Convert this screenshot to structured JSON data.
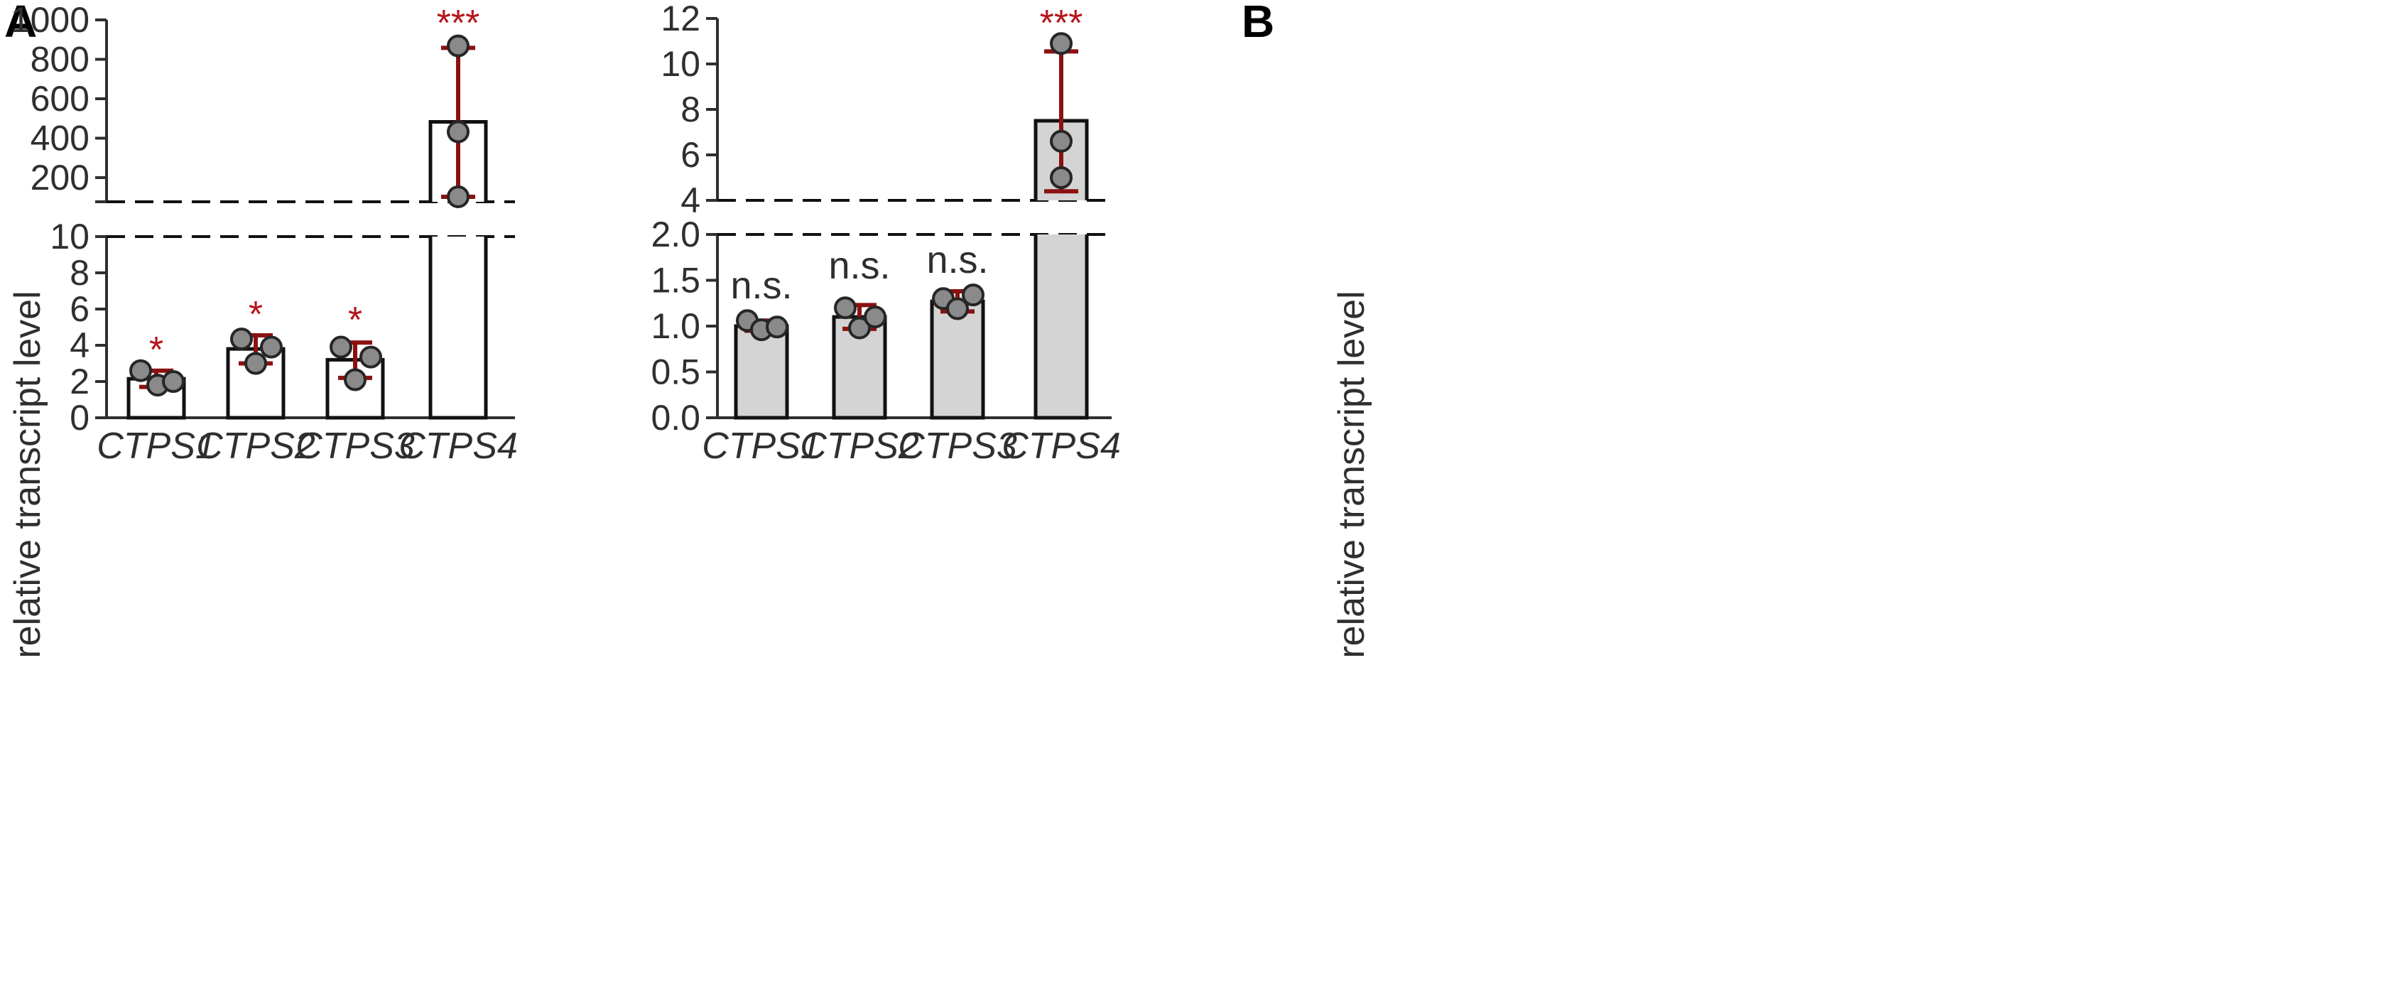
{
  "colors": {
    "axis": "#2f2f2f",
    "bar_edge": "#111111",
    "bar_fill_A": "#ffffff",
    "bar_fill_B": "#d4d4d4",
    "error": "#8b1111",
    "point_fill": "#8a8a8a",
    "point_edge": "#262626",
    "sig": "#b5161b"
  },
  "chart_data": [
    {
      "panel": "A",
      "type": "bar",
      "ylabel": "relative transcript level",
      "categories": [
        "CTPS1",
        "CTPS2",
        "CTPS3",
        "CTPS4"
      ],
      "values": [
        2.15,
        3.8,
        3.2,
        490
      ],
      "error_low": [
        1.7,
        3.0,
        2.2,
        115
      ],
      "error_high": [
        2.6,
        4.55,
        4.15,
        860
      ],
      "points": [
        [
          2.6,
          1.8,
          2.0
        ],
        [
          4.35,
          3.0,
          3.9
        ],
        [
          3.9,
          2.1,
          3.35
        ],
        [
          870,
          440,
          115
        ]
      ],
      "significance": [
        "*",
        "*",
        "*",
        "***"
      ],
      "y_axis_break": true,
      "lower_segment": {
        "ylim": [
          0,
          10
        ],
        "ticks": [
          "0",
          "2",
          "4",
          "6",
          "8",
          "10"
        ]
      },
      "upper_segment": {
        "ylim": [
          90,
          1000
        ],
        "ticks": [
          "200",
          "400",
          "600",
          "800",
          "1000"
        ]
      }
    },
    {
      "panel": "B",
      "type": "bar",
      "ylabel": "relative transcript level",
      "categories": [
        "CTPS1",
        "CTPS2",
        "CTPS3",
        "CTPS4"
      ],
      "values": [
        1.0,
        1.1,
        1.27,
        7.5
      ],
      "error_low": [
        0.95,
        0.97,
        1.16,
        4.4
      ],
      "error_high": [
        1.06,
        1.23,
        1.38,
        10.55
      ],
      "points": [
        [
          1.06,
          0.96,
          0.99
        ],
        [
          1.2,
          0.98,
          1.1
        ],
        [
          1.3,
          1.19,
          1.34
        ],
        [
          10.9,
          6.6,
          5.0
        ]
      ],
      "significance": [
        "n.s.",
        "n.s.",
        "n.s.",
        "***"
      ],
      "y_axis_break": true,
      "lower_segment": {
        "ylim": [
          0,
          2.0
        ],
        "ticks": [
          "0.0",
          "0.5",
          "1.0",
          "1.5",
          "2.0"
        ]
      },
      "upper_segment": {
        "ylim": [
          4,
          12
        ],
        "ticks": [
          "4",
          "6",
          "8",
          "10",
          "12"
        ]
      }
    }
  ]
}
